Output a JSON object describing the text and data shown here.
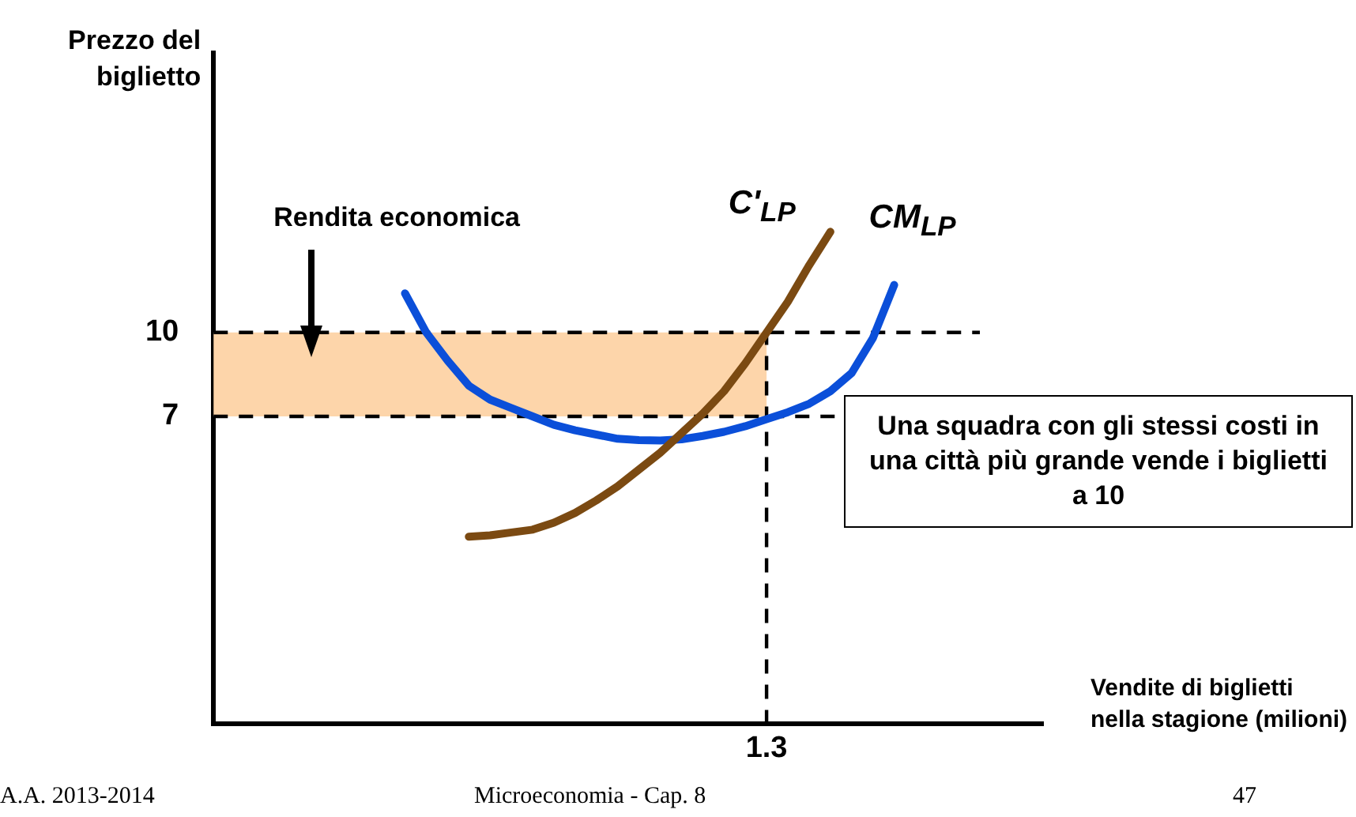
{
  "chart_data": {
    "type": "line",
    "ylabel": "Prezzo del biglietto",
    "xlabel": "Vendite di biglietti nella stagione (milioni)",
    "categories": [
      null,
      null,
      null,
      null,
      null,
      null,
      null,
      null,
      null,
      null,
      null,
      null,
      null,
      null,
      null,
      null,
      null,
      null,
      null,
      null,
      null,
      null,
      null,
      null,
      null,
      null,
      "1.3",
      null,
      null,
      null,
      null,
      null,
      null,
      null,
      null,
      null,
      null,
      null,
      null,
      null
    ],
    "ylim": [
      -4,
      20
    ],
    "yticks": [
      7,
      10
    ],
    "grid": false,
    "legend": false,
    "marker": "none",
    "line_style": "solid",
    "series": [
      {
        "name": "C'$_{LP}$",
        "color": "#7b4a12",
        "values": [
          null,
          null,
          null,
          null,
          null,
          null,
          null,
          null,
          null,
          null,
          null,
          null,
          2.7,
          2.75,
          2.85,
          2.95,
          3.2,
          3.55,
          4.0,
          4.5,
          5.1,
          5.7,
          6.4,
          7.1,
          7.9,
          8.9,
          10.0,
          11.1,
          12.4,
          13.6,
          null,
          null,
          null,
          null,
          null,
          null,
          null,
          null,
          null,
          null
        ]
      },
      {
        "name": "CM$_{LP}$",
        "color": "#0b4fd9",
        "values": [
          null,
          null,
          null,
          null,
          null,
          null,
          null,
          null,
          null,
          11.4,
          10.0,
          9.0,
          8.1,
          7.6,
          7.3,
          7.0,
          6.7,
          6.5,
          6.35,
          6.2,
          6.15,
          6.14,
          6.18,
          6.3,
          6.45,
          6.65,
          6.9,
          7.15,
          7.45,
          7.9,
          8.55,
          9.8,
          11.7,
          null,
          null,
          null,
          null,
          null,
          null,
          null
        ]
      }
    ],
    "ref_lines": [
      {
        "axis": "y",
        "value": 10,
        "line_style": "dashed",
        "color": "#000000"
      },
      {
        "axis": "y",
        "value": 7,
        "line_style": "dashed",
        "color": "#000000"
      },
      {
        "axis": "x",
        "value": "1.3",
        "line_style": "dashed",
        "color": "#000000"
      }
    ],
    "bands": [
      {
        "axis": "y",
        "from": 7,
        "to": 10,
        "label": "Rendita economica",
        "color": "#fdd5aa"
      }
    ],
    "annotations": [
      "Una squadra con gli stessi costi in una città più grande vende i biglietti a 10",
      "A.A. 2013-2014",
      "Microeconomia - Cap. 8",
      "47"
    ]
  }
}
